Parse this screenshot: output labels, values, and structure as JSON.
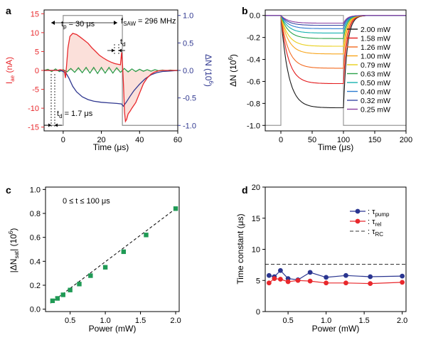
{
  "chart_data": [
    {
      "panel": "a",
      "type": "line",
      "xlabel": "Time (μs)",
      "ylabel_left": "I",
      "ylabel_left_sub": "ae",
      "ylabel_left_unit": " (nA)",
      "ylabel_right": "ΔN (10",
      "ylabel_right_sup": "6",
      "ylabel_right_close": ")",
      "xlim": [
        -10,
        60
      ],
      "ylim_left": [
        -16,
        16
      ],
      "ylim_right": [
        -1.1,
        1.1
      ],
      "xticks": [
        0,
        20,
        40,
        60
      ],
      "yticks_left": [
        -15,
        -10,
        -5,
        0,
        5,
        10,
        15
      ],
      "yticks_right": [
        -1.0,
        -0.5,
        0.0,
        0.5,
        1.0
      ],
      "yticks_right_labels": [
        "-1.0",
        "-0.5",
        "0.0",
        "0.5",
        "1.0"
      ],
      "annotations": {
        "tp": "t",
        "tp_sub": "p",
        "tp_rest": " = 30 μs",
        "fsaw": "f",
        "fsaw_sub": "SAW",
        "fsaw_rest": " = 296 MHz",
        "td": "t",
        "td_sub": "d",
        "td2": "t",
        "td2_sub": "d",
        "td2_rest": " = 1.7 μs"
      },
      "series": [
        {
          "name": "I_ae",
          "axis": "left",
          "color": "#e8282c",
          "x": [
            -10,
            -3,
            -1.5,
            0.5,
            1.2,
            1.8,
            2.5,
            3.5,
            5,
            7,
            9,
            11,
            13,
            15,
            17,
            19,
            21,
            23,
            25,
            27,
            29,
            30,
            30.6,
            31.1,
            31.6,
            32.1,
            32.6,
            33.2,
            34,
            35,
            36,
            38,
            40,
            42,
            44,
            46,
            48,
            50,
            52,
            55,
            60
          ],
          "y": [
            0,
            0,
            0.2,
            0,
            -2.0,
            1.5,
            6.0,
            9.0,
            9.8,
            9.5,
            8.8,
            8.0,
            7.2,
            6.0,
            5.0,
            4.0,
            3.3,
            2.7,
            2.2,
            1.8,
            1.6,
            1.5,
            4.8,
            1.2,
            -4.0,
            -11.0,
            -13.5,
            -13.0,
            -11.5,
            -10.8,
            -10.0,
            -8.5,
            -6.0,
            -3.5,
            -2.0,
            -1.0,
            -0.4,
            -0.1,
            0,
            0,
            0
          ]
        },
        {
          "name": "ΔN",
          "axis": "right",
          "color": "#303890",
          "x": [
            -10,
            -1.5,
            0,
            1.5,
            3,
            5,
            7,
            10,
            13,
            16,
            20,
            24,
            28,
            30.5,
            31.5,
            33,
            35,
            37,
            40,
            43,
            46,
            49,
            52,
            56,
            60
          ],
          "y": [
            0,
            0,
            -0.02,
            -0.05,
            -0.14,
            -0.29,
            -0.39,
            -0.48,
            -0.53,
            -0.56,
            -0.58,
            -0.59,
            -0.6,
            -0.61,
            -0.65,
            -0.58,
            -0.47,
            -0.37,
            -0.25,
            -0.15,
            -0.08,
            -0.04,
            -0.02,
            -0.01,
            0
          ]
        },
        {
          "name": "noise",
          "axis": "left",
          "color": "#2e9a48",
          "x": [
            -10,
            -8,
            -6,
            -4,
            -2,
            0,
            2,
            4,
            6,
            8,
            10,
            12,
            14,
            16,
            18,
            20,
            22,
            24,
            26,
            28,
            30,
            32,
            34,
            36,
            38,
            40,
            42,
            44,
            46,
            48,
            50,
            52,
            54,
            56,
            58,
            60
          ],
          "y": [
            0,
            0.3,
            -0.3,
            0.4,
            -0.3,
            0.2,
            -0.4,
            0.5,
            -0.5,
            0.7,
            -0.6,
            0.8,
            -0.7,
            0.8,
            -0.8,
            0.8,
            -0.7,
            0.8,
            -0.7,
            0.7,
            -0.5,
            0.5,
            -0.4,
            0.4,
            -0.3,
            0.3,
            -0.2,
            0.2,
            -0.2,
            0.2,
            -0.1,
            0.1,
            -0.1,
            0.1,
            0,
            0
          ]
        }
      ],
      "pulse_right": {
        "low": -1.0,
        "high": 1.0,
        "on": 0,
        "off": 31,
        "color": "#8f8f8f"
      }
    },
    {
      "panel": "b",
      "type": "line",
      "xlabel": "Time (μs)",
      "ylabel": "ΔN (10",
      "ylabel_sup": "6",
      "ylabel_close": ")",
      "xlim": [
        -25,
        200
      ],
      "ylim": [
        -1.05,
        0.05
      ],
      "xticks": [
        0,
        50,
        100,
        150,
        200
      ],
      "yticks": [
        -1.0,
        -0.8,
        -0.6,
        -0.4,
        -0.2,
        0.0
      ],
      "yticks_labels": [
        "-1.0",
        "-0.8",
        "-0.6",
        "-0.4",
        "-0.2",
        "0.0"
      ],
      "t_on": 0,
      "t_off": 100,
      "pulse": {
        "low": -1.0,
        "high": 0.0,
        "on": 0,
        "off": 100,
        "color": "#9a9a9a"
      },
      "series": [
        {
          "name": "2.00 mW",
          "color": "#1a1a1a",
          "y_sat": -0.84
        },
        {
          "name": "1.58 mW",
          "color": "#e31a1c",
          "y_sat": -0.62
        },
        {
          "name": "1.26 mW",
          "color": "#f36b21",
          "y_sat": -0.48
        },
        {
          "name": "1.00 mW",
          "color": "#f8a51c",
          "y_sat": -0.35
        },
        {
          "name": "0.79 mW",
          "color": "#e8cf1a",
          "y_sat": -0.28
        },
        {
          "name": "0.63 mW",
          "color": "#2ba34a",
          "y_sat": -0.21
        },
        {
          "name": "0.50 mW",
          "color": "#17b3b0",
          "y_sat": -0.16
        },
        {
          "name": "0.40 mW",
          "color": "#2c7bd0",
          "y_sat": -0.12
        },
        {
          "name": "0.32 mW",
          "color": "#3a4ba6",
          "y_sat": -0.09
        },
        {
          "name": "0.25 mW",
          "color": "#8a3fa0",
          "y_sat": -0.07
        }
      ]
    },
    {
      "panel": "c",
      "type": "scatter",
      "xlabel": "Power (mW)",
      "ylabel": "|ΔN",
      "ylabel_sub": "sat",
      "ylabel_mid": "| (10",
      "ylabel_sup": "6",
      "ylabel_close": ")",
      "annotation": "0 ≤ t ≤ 100 μs",
      "xlim": [
        0.15,
        2.05
      ],
      "ylim": [
        -0.02,
        1.02
      ],
      "xticks": [
        0.5,
        1.0,
        1.5,
        2.0
      ],
      "xticks_labels": [
        "0.5",
        "1.0",
        "1.5",
        "2.0"
      ],
      "yticks": [
        0.0,
        0.2,
        0.4,
        0.6,
        0.8,
        1.0
      ],
      "yticks_labels": [
        "0.0",
        "0.2",
        "0.4",
        "0.6",
        "0.8",
        "1.0"
      ],
      "marker_color": "#1f9a55",
      "x": [
        0.25,
        0.32,
        0.4,
        0.5,
        0.63,
        0.79,
        1.0,
        1.26,
        1.58,
        2.0
      ],
      "y": [
        0.07,
        0.09,
        0.12,
        0.16,
        0.21,
        0.28,
        0.35,
        0.48,
        0.62,
        0.84
      ],
      "fit": {
        "x": [
          0.22,
          2.0
        ],
        "y": [
          0.05,
          0.84
        ]
      }
    },
    {
      "panel": "d",
      "type": "line",
      "xlabel": "Power (mW)",
      "ylabel": "Time constant (μs)",
      "xlim": [
        0.2,
        2.05
      ],
      "ylim": [
        0,
        20
      ],
      "xticks": [
        0.5,
        1.0,
        1.5,
        2.0
      ],
      "xticks_labels": [
        "0.5",
        "1.0",
        "1.5",
        "2.0"
      ],
      "yticks": [
        0,
        5,
        10,
        15,
        20
      ],
      "legend_position": "top-right",
      "series": [
        {
          "name": ": τ",
          "sub": "pump",
          "color": "#2a3590",
          "x": [
            0.25,
            0.32,
            0.4,
            0.5,
            0.63,
            0.79,
            1.0,
            1.26,
            1.58,
            2.0
          ],
          "y": [
            5.8,
            5.6,
            6.6,
            5.3,
            5.1,
            6.3,
            5.5,
            5.8,
            5.6,
            5.7
          ]
        },
        {
          "name": ": τ",
          "sub": "rel",
          "color": "#e8282c",
          "x": [
            0.25,
            0.32,
            0.4,
            0.5,
            0.63,
            0.79,
            1.0,
            1.26,
            1.58,
            2.0
          ],
          "y": [
            4.6,
            5.3,
            5.2,
            4.8,
            5.0,
            4.9,
            4.6,
            4.6,
            4.5,
            4.7
          ]
        },
        {
          "name": ": τ",
          "sub": "RC",
          "color": "#333333",
          "dashed": true,
          "y_const": 7.6
        }
      ]
    }
  ]
}
